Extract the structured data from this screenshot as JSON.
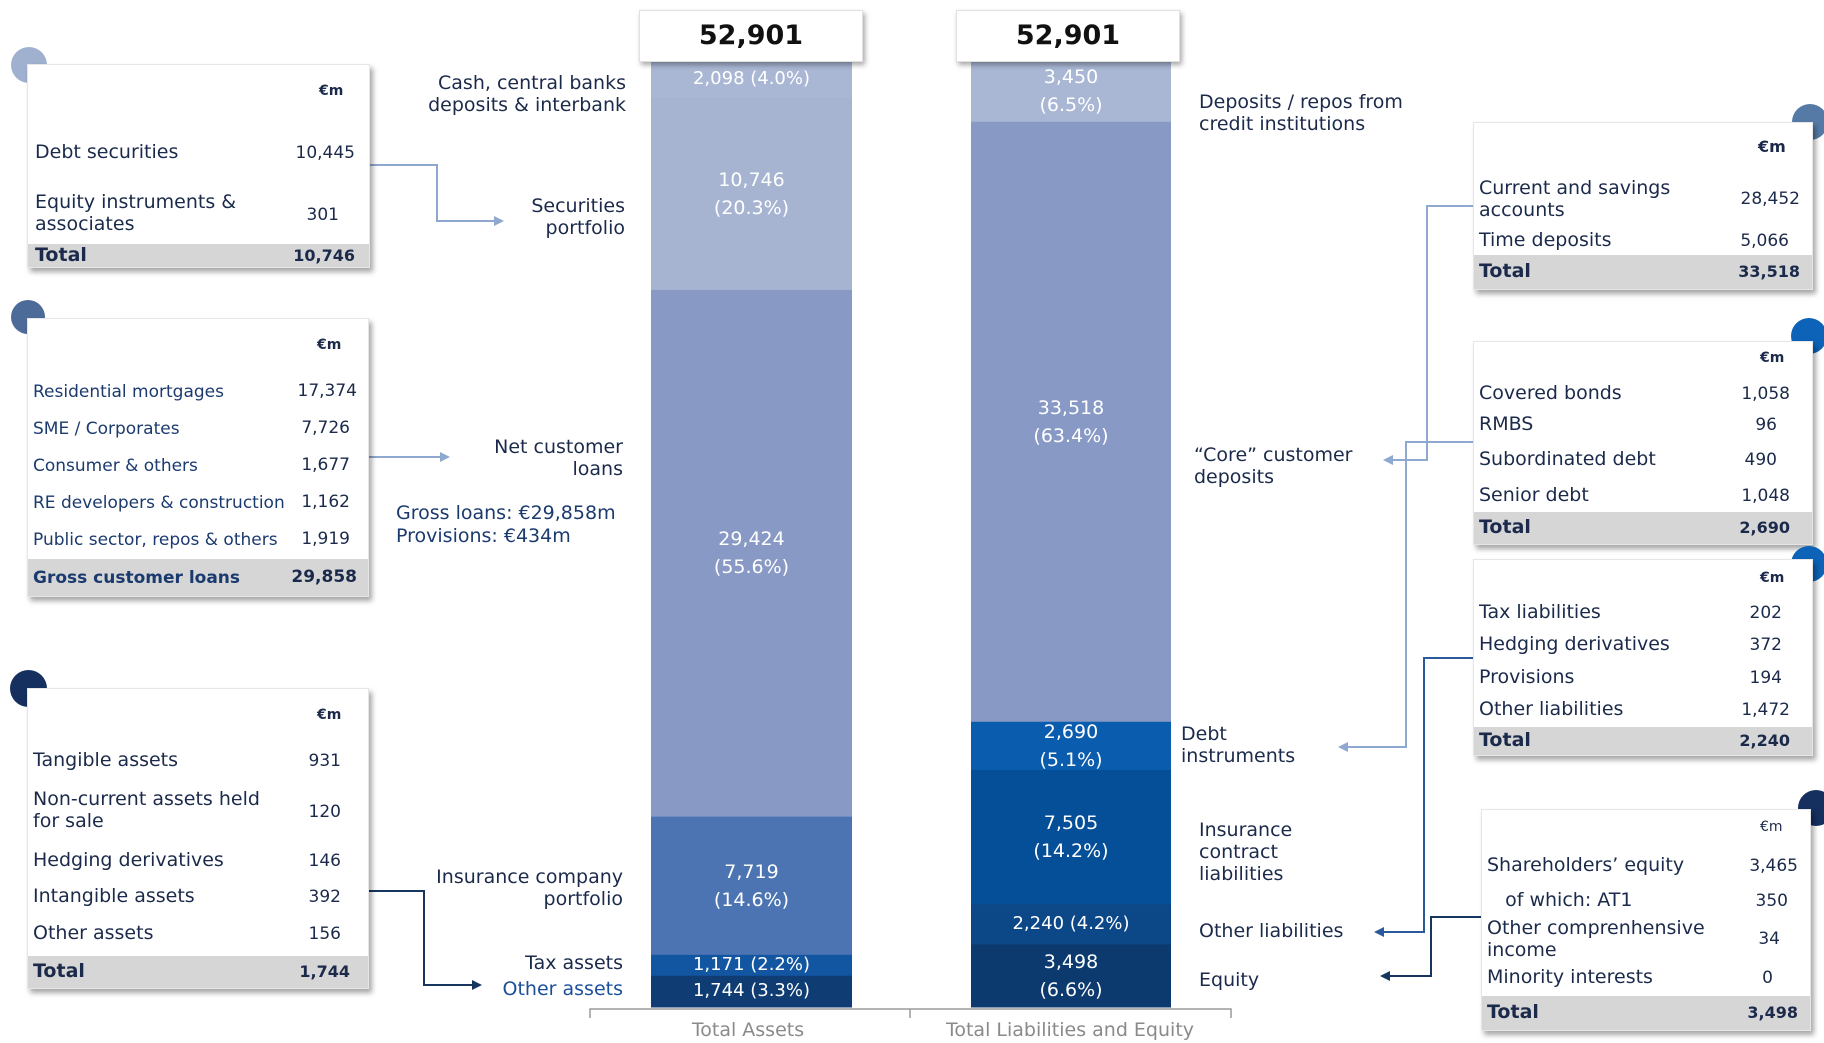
{
  "chart_data": {
    "type": "bar",
    "stacked": true,
    "categories": [
      "Total Assets",
      "Total Liabilities and Equity"
    ],
    "totals": [
      "52,901",
      "52,901"
    ],
    "assets": [
      {
        "name": "Cash, central banks deposits & interbank",
        "value": 2098,
        "value_label": "2,098",
        "pct_label": "(4.0%)",
        "color": "#a9b7d4"
      },
      {
        "name": "Securities portfolio",
        "value": 10746,
        "value_label": "10,746",
        "pct_label": "(20.3%)",
        "color": "#a6b4d2"
      },
      {
        "name": "Net customer loans",
        "value": 29424,
        "value_label": "29,424",
        "pct_label": "(55.6%)",
        "color": "#8799c4"
      },
      {
        "name": "Insurance company portfolio",
        "value": 7719,
        "value_label": "7,719",
        "pct_label": "(14.6%)",
        "color": "#4c74b3"
      },
      {
        "name": "Tax assets",
        "value": 1171,
        "value_label": "1,171",
        "pct_label": "(2.2%)",
        "color": "#1255a0"
      },
      {
        "name": "Other assets",
        "value": 1744,
        "value_label": "1,744",
        "pct_label": "(3.3%)",
        "color": "#0e3c73"
      }
    ],
    "liabilities": [
      {
        "name": "Deposits / repos from credit institutions",
        "value": 3450,
        "value_label": "3,450",
        "pct_label": "(6.5%)",
        "color": "#a9b7d4"
      },
      {
        "name": "Core customer deposits",
        "value": 33518,
        "value_label": "33,518",
        "pct_label": "(63.4%)",
        "color": "#8799c4"
      },
      {
        "name": "Debt instruments",
        "value": 2690,
        "value_label": "2,690",
        "pct_label": "(5.1%)",
        "color": "#0a5cae"
      },
      {
        "name": "Insurance contract liabilities",
        "value": 7505,
        "value_label": "7,505",
        "pct_label": "(14.2%)",
        "color": "#054f98"
      },
      {
        "name": "Other liabilities",
        "value": 2240,
        "value_label": "2,240",
        "pct_label": "(4.2%)",
        "color": "#0c4787"
      },
      {
        "name": "Equity",
        "value": 3498,
        "value_label": "3,498",
        "pct_label": "(6.6%)",
        "color": "#0c3a6f"
      }
    ]
  },
  "labels": {
    "cash": "Cash, central banks\ndeposits & interbank",
    "securities": "Securities\nportfolio",
    "loans": "Net customer\nloans",
    "gross_loans": "Gross loans: €29,858m",
    "provisions": "Provisions:  €434m",
    "insurance": "Insurance company\nportfolio",
    "tax_assets": "Tax assets",
    "other_assets": "Other assets",
    "deposits_ci": "Deposits / repos from\ncredit institutions",
    "core": "“Core” customer\ndeposits",
    "debt": "Debt\ninstruments",
    "ins_liab": "Insurance\ncontract\nliabilities",
    "other_liab": "Other liabilities",
    "equity": "Equity",
    "axis_assets": "Total Assets",
    "axis_liab": "Total Liabilities and Equity"
  },
  "tables": {
    "securities": {
      "unit": "€m",
      "rows": [
        [
          "Debt securities",
          "10,445"
        ],
        [
          "Equity instruments &\nassociates",
          "301"
        ]
      ],
      "total": [
        "Total",
        "10,746"
      ]
    },
    "loans": {
      "unit": "€m",
      "rows": [
        [
          "Residential mortgages",
          "17,374"
        ],
        [
          "SME / Corporates",
          "7,726"
        ],
        [
          "Consumer & others",
          "1,677"
        ],
        [
          "RE developers & construction",
          "1,162"
        ],
        [
          "Public sector, repos & others",
          "1,919"
        ]
      ],
      "total": [
        "Gross customer loans",
        "29,858"
      ]
    },
    "other_assets": {
      "unit": "€m",
      "rows": [
        [
          "Tangible assets",
          "931"
        ],
        [
          "Non-current assets held\nfor sale",
          "120"
        ],
        [
          "Hedging derivatives",
          "146"
        ],
        [
          "Intangible assets",
          "392"
        ],
        [
          "Other assets",
          "156"
        ]
      ],
      "total": [
        "Total",
        "1,744"
      ]
    },
    "deposits": {
      "unit": "€m",
      "rows": [
        [
          "Current and savings\naccounts",
          "28,452"
        ],
        [
          "Time deposits",
          "5,066"
        ]
      ],
      "total": [
        "Total",
        "33,518"
      ]
    },
    "debt": {
      "unit": "€m",
      "rows": [
        [
          "Covered bonds",
          "1,058"
        ],
        [
          "RMBS",
          "96"
        ],
        [
          "Subordinated debt",
          "490"
        ],
        [
          "Senior debt",
          "1,048"
        ]
      ],
      "total": [
        "Total",
        "2,690"
      ]
    },
    "other_liab": {
      "unit": "€m",
      "rows": [
        [
          "Tax liabilities",
          "202"
        ],
        [
          "Hedging derivatives",
          "372"
        ],
        [
          "Provisions",
          "194"
        ],
        [
          "Other liabilities",
          "1,472"
        ]
      ],
      "total": [
        "Total",
        "2,240"
      ]
    },
    "equity": {
      "unit": "€m",
      "rows": [
        [
          "Shareholders’ equity",
          "3,465"
        ],
        [
          "   of which: AT1",
          "350"
        ],
        [
          "Other comprenhensive\nincome",
          "34"
        ],
        [
          "Minority interests",
          "0"
        ]
      ],
      "total": [
        "Total",
        "3,498"
      ]
    }
  },
  "colors": {
    "dot_light": "#9fb1cf",
    "dot_mid": "#4d6b99",
    "dot_dark": "#15305f",
    "dot_blue": "#0c63b8",
    "dot_steel": "#567aa6",
    "arrow_light": "#8ea8d0",
    "arrow_mid": "#2b5a9a",
    "arrow_dark": "#16365f"
  }
}
